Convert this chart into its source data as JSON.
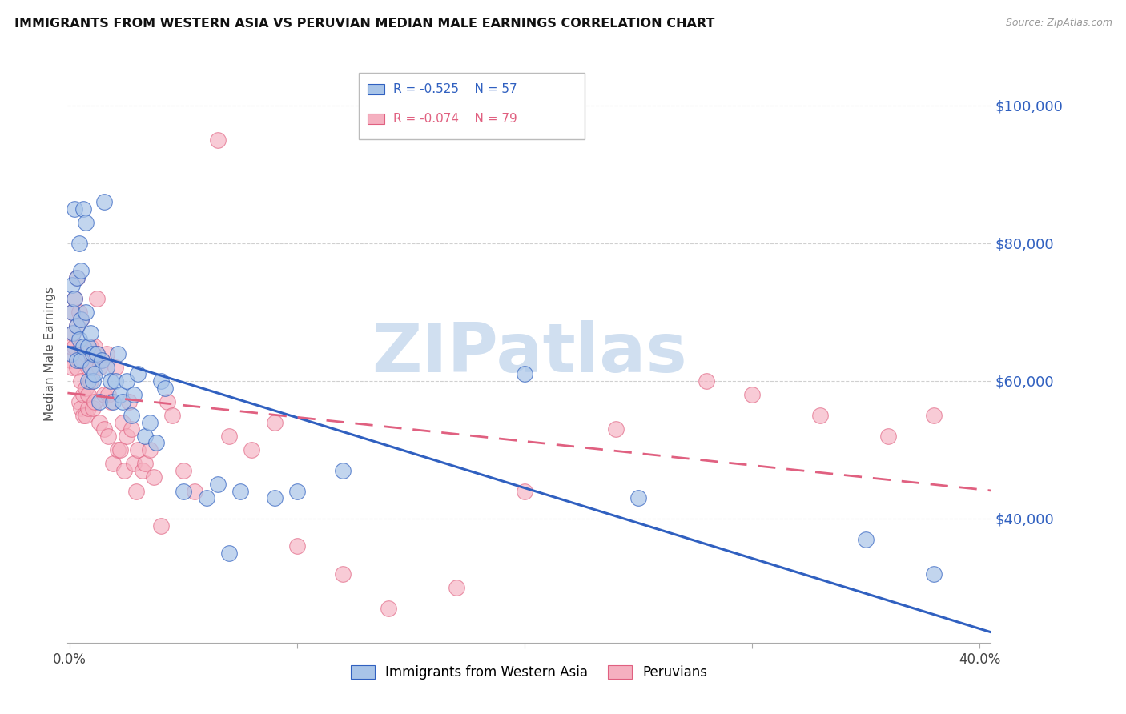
{
  "title": "IMMIGRANTS FROM WESTERN ASIA VS PERUVIAN MEDIAN MALE EARNINGS CORRELATION CHART",
  "source": "Source: ZipAtlas.com",
  "ylabel": "Median Male Earnings",
  "ytick_labels": [
    "$40,000",
    "$60,000",
    "$80,000",
    "$100,000"
  ],
  "ytick_values": [
    40000,
    60000,
    80000,
    100000
  ],
  "ymin": 22000,
  "ymax": 106000,
  "xmin": -0.001,
  "xmax": 0.405,
  "color_blue": "#a8c4e8",
  "color_pink": "#f5b0c0",
  "color_blue_line": "#3060c0",
  "color_pink_line": "#e06080",
  "color_blue_label": "#3060c0",
  "watermark_color": "#d0dff0",
  "blue_r": "-0.525",
  "blue_n": "57",
  "pink_r": "-0.074",
  "pink_n": "79",
  "blue_scatter_x": [
    0.0005,
    0.001,
    0.001,
    0.0015,
    0.002,
    0.002,
    0.003,
    0.003,
    0.003,
    0.004,
    0.004,
    0.005,
    0.005,
    0.005,
    0.006,
    0.006,
    0.007,
    0.007,
    0.008,
    0.008,
    0.009,
    0.009,
    0.01,
    0.01,
    0.011,
    0.012,
    0.013,
    0.014,
    0.015,
    0.016,
    0.018,
    0.019,
    0.02,
    0.021,
    0.022,
    0.023,
    0.025,
    0.027,
    0.028,
    0.03,
    0.033,
    0.035,
    0.038,
    0.04,
    0.042,
    0.05,
    0.06,
    0.065,
    0.07,
    0.075,
    0.09,
    0.1,
    0.12,
    0.2,
    0.25,
    0.35,
    0.38
  ],
  "blue_scatter_y": [
    64000,
    70000,
    74000,
    67000,
    72000,
    85000,
    68000,
    75000,
    63000,
    80000,
    66000,
    76000,
    69000,
    63000,
    65000,
    85000,
    83000,
    70000,
    65000,
    60000,
    67000,
    62000,
    64000,
    60000,
    61000,
    64000,
    57000,
    63000,
    86000,
    62000,
    60000,
    57000,
    60000,
    64000,
    58000,
    57000,
    60000,
    55000,
    58000,
    61000,
    52000,
    54000,
    51000,
    60000,
    59000,
    44000,
    43000,
    45000,
    35000,
    44000,
    43000,
    44000,
    47000,
    61000,
    43000,
    37000,
    32000
  ],
  "pink_scatter_x": [
    0.0003,
    0.0005,
    0.001,
    0.001,
    0.0015,
    0.002,
    0.002,
    0.003,
    0.003,
    0.003,
    0.004,
    0.004,
    0.004,
    0.005,
    0.005,
    0.005,
    0.005,
    0.006,
    0.006,
    0.006,
    0.007,
    0.007,
    0.007,
    0.008,
    0.008,
    0.008,
    0.009,
    0.009,
    0.01,
    0.01,
    0.011,
    0.011,
    0.012,
    0.012,
    0.013,
    0.013,
    0.014,
    0.015,
    0.015,
    0.016,
    0.017,
    0.017,
    0.018,
    0.019,
    0.02,
    0.021,
    0.022,
    0.023,
    0.024,
    0.025,
    0.026,
    0.027,
    0.028,
    0.029,
    0.03,
    0.032,
    0.033,
    0.035,
    0.037,
    0.04,
    0.043,
    0.045,
    0.05,
    0.055,
    0.065,
    0.07,
    0.08,
    0.09,
    0.1,
    0.12,
    0.14,
    0.17,
    0.2,
    0.24,
    0.28,
    0.3,
    0.33,
    0.36,
    0.38
  ],
  "pink_scatter_y": [
    63000,
    65000,
    62000,
    70000,
    67000,
    72000,
    65000,
    75000,
    68000,
    62000,
    70000,
    63000,
    57000,
    69000,
    65000,
    60000,
    56000,
    63000,
    58000,
    55000,
    64000,
    59000,
    55000,
    62000,
    56000,
    58000,
    65000,
    60000,
    62000,
    56000,
    65000,
    57000,
    72000,
    64000,
    62000,
    54000,
    63000,
    58000,
    53000,
    64000,
    58000,
    52000,
    57000,
    48000,
    62000,
    50000,
    50000,
    54000,
    47000,
    52000,
    57000,
    53000,
    48000,
    44000,
    50000,
    47000,
    48000,
    50000,
    46000,
    39000,
    57000,
    55000,
    47000,
    44000,
    95000,
    52000,
    50000,
    54000,
    36000,
    32000,
    27000,
    30000,
    44000,
    53000,
    60000,
    58000,
    55000,
    52000,
    55000
  ]
}
